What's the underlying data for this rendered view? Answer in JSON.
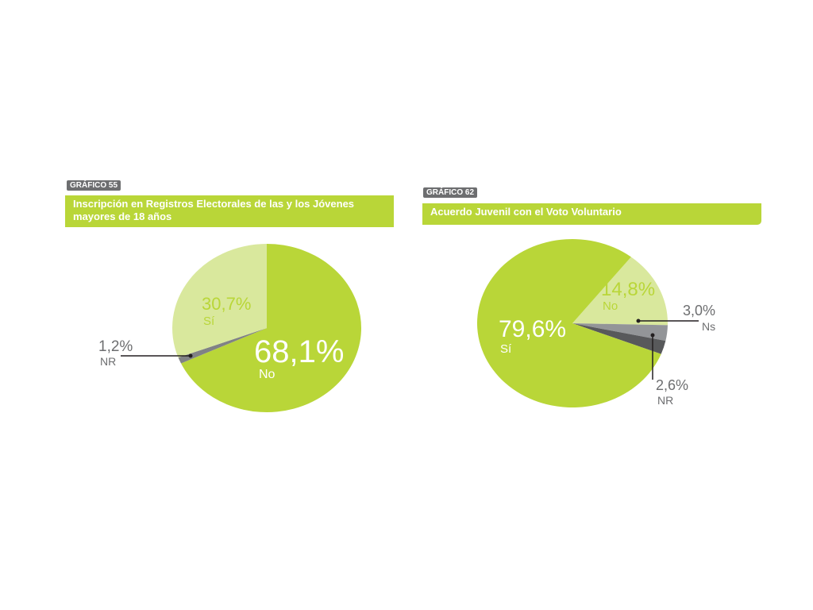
{
  "chart_data": [
    {
      "type": "pie",
      "badge": "GRÁFICO 55",
      "title": "Inscripción en Registros Electorales de las y los Jóvenes mayores de 18 años",
      "slices": [
        {
          "label": "No",
          "value": 68.1,
          "value_text": "68,1%",
          "color": "#b9d638"
        },
        {
          "label": "NR",
          "value": 1.2,
          "value_text": "1,2%",
          "color": "#808285"
        },
        {
          "label": "Sí",
          "value": 30.7,
          "value_text": "30,7%",
          "color": "#d9e89d"
        }
      ]
    },
    {
      "type": "pie",
      "badge": "GRÁFICO 62",
      "title": "Acuerdo Juvenil con el Voto Voluntario",
      "slices": [
        {
          "label": "No",
          "value": 14.8,
          "value_text": "14,8%",
          "color": "#d9e89d"
        },
        {
          "label": "Ns",
          "value": 3.0,
          "value_text": "3,0%",
          "color": "#939598"
        },
        {
          "label": "NR",
          "value": 2.6,
          "value_text": "2,6%",
          "color": "#58595b"
        },
        {
          "label": "Sí",
          "value": 79.6,
          "value_text": "79,6%",
          "color": "#b9d638"
        }
      ]
    }
  ]
}
